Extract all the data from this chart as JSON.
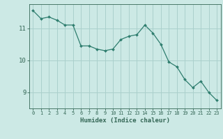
{
  "x": [
    0,
    1,
    2,
    3,
    4,
    5,
    6,
    7,
    8,
    9,
    10,
    11,
    12,
    13,
    14,
    15,
    16,
    17,
    18,
    19,
    20,
    21,
    22,
    23
  ],
  "y": [
    11.55,
    11.3,
    11.35,
    11.25,
    11.1,
    11.1,
    10.45,
    10.45,
    10.35,
    10.3,
    10.35,
    10.65,
    10.75,
    10.8,
    11.1,
    10.85,
    10.5,
    9.95,
    9.8,
    9.4,
    9.15,
    9.35,
    9.0,
    8.75
  ],
  "line_color": "#2e7d6e",
  "marker": "D",
  "marker_size": 2.0,
  "bg_color": "#cce9e5",
  "grid_color": "#aad0cc",
  "tick_color": "#336655",
  "xlabel": "Humidex (Indice chaleur)",
  "yticks": [
    9,
    10,
    11
  ],
  "xlim": [
    -0.5,
    23.5
  ],
  "ylim": [
    8.5,
    11.75
  ]
}
